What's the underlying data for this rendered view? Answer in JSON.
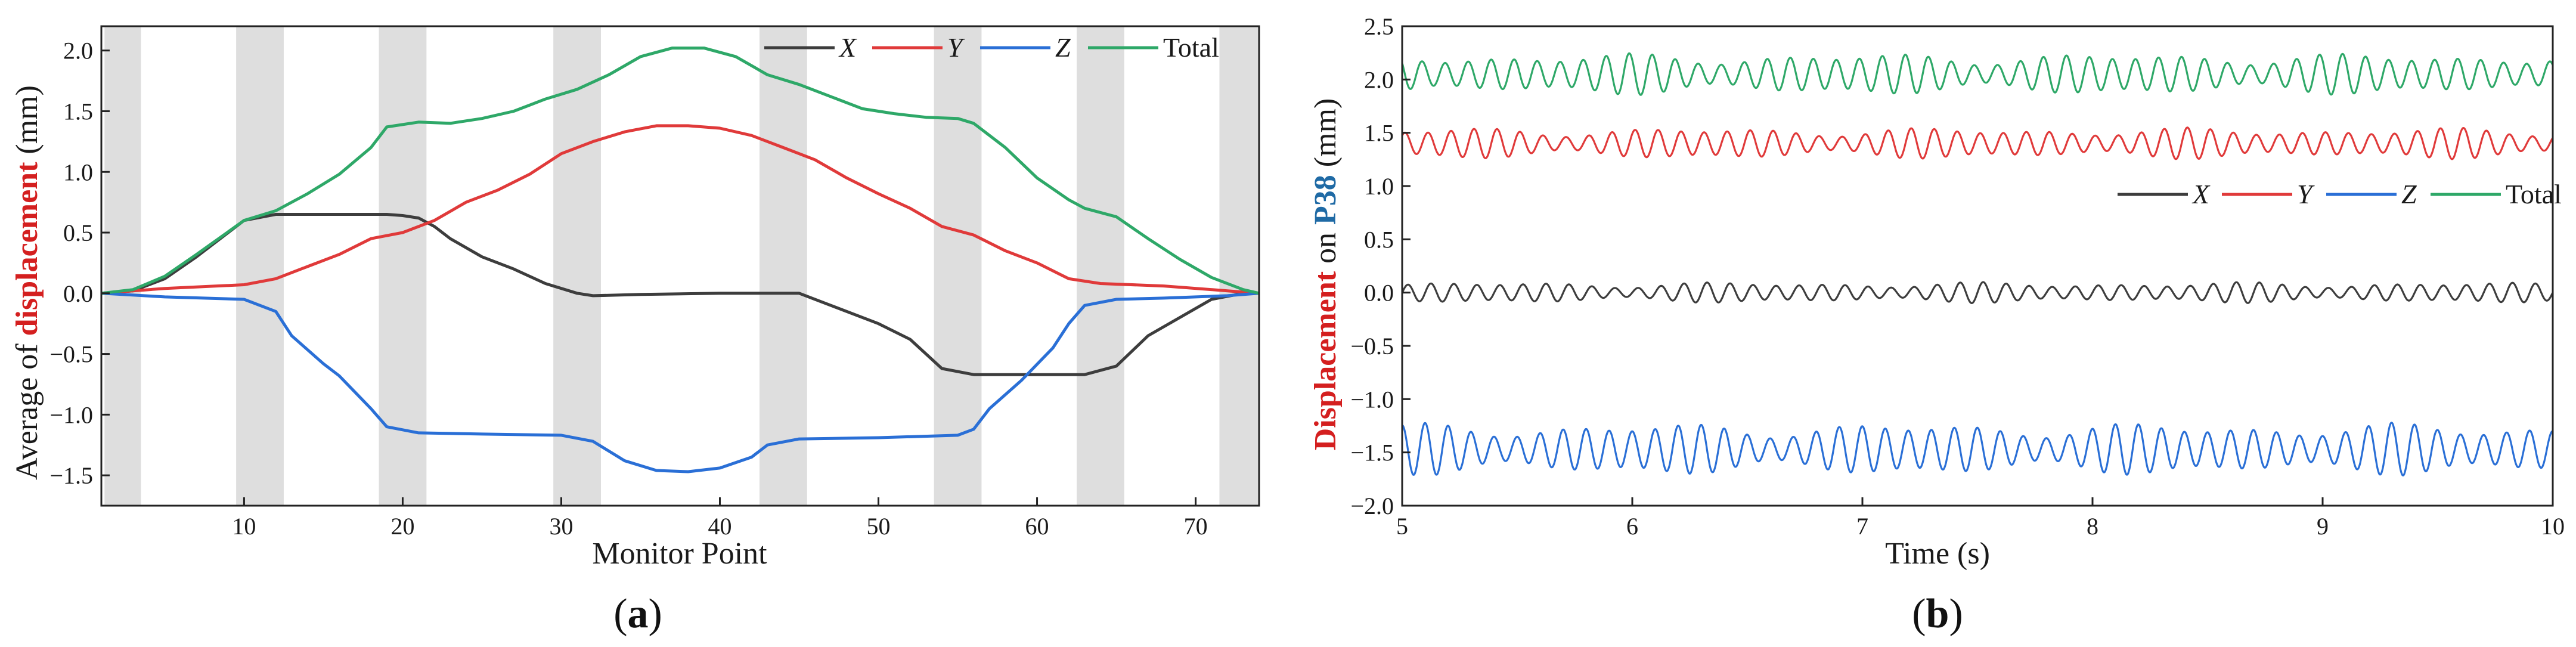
{
  "chart_data": [
    {
      "id": "a",
      "type": "line",
      "panel_label": "a",
      "xlabel": "Monitor Point",
      "ylabel_parts": [
        {
          "text": "Average of ",
          "color": "#1a1a1a",
          "bold": false
        },
        {
          "text": "displacement",
          "color": "#d41f1f",
          "bold": true
        },
        {
          "text": " (mm)",
          "color": "#1a1a1a",
          "bold": false
        }
      ],
      "xlim": [
        1,
        74
      ],
      "ylim": [
        -1.75,
        2.2
      ],
      "xticks": [
        10,
        20,
        30,
        40,
        50,
        60,
        70
      ],
      "yticks": [
        -1.5,
        -1.0,
        -0.5,
        0.0,
        0.5,
        1.0,
        1.5,
        2.0
      ],
      "shaded_bands": [
        [
          1.2,
          3.5
        ],
        [
          9.5,
          12.5
        ],
        [
          18.5,
          21.5
        ],
        [
          29.5,
          32.5
        ],
        [
          42.5,
          45.5
        ],
        [
          53.5,
          56.5
        ],
        [
          62.5,
          65.5
        ],
        [
          71.5,
          74
        ]
      ],
      "legend_position": "top-right",
      "series": [
        {
          "name": "X",
          "color": "#3d3d3d",
          "points": [
            [
              1,
              0
            ],
            [
              3,
              0.02
            ],
            [
              5,
              0.12
            ],
            [
              7,
              0.3
            ],
            [
              10,
              0.6
            ],
            [
              12,
              0.65
            ],
            [
              15,
              0.65
            ],
            [
              19,
              0.65
            ],
            [
              20,
              0.64
            ],
            [
              21,
              0.62
            ],
            [
              22,
              0.55
            ],
            [
              23,
              0.45
            ],
            [
              25,
              0.3
            ],
            [
              27,
              0.2
            ],
            [
              29,
              0.08
            ],
            [
              31,
              0
            ],
            [
              32,
              -0.02
            ],
            [
              35,
              -0.01
            ],
            [
              40,
              0
            ],
            [
              45,
              0
            ],
            [
              47,
              -0.1
            ],
            [
              50,
              -0.25
            ],
            [
              52,
              -0.38
            ],
            [
              54,
              -0.62
            ],
            [
              56,
              -0.67
            ],
            [
              60,
              -0.67
            ],
            [
              63,
              -0.67
            ],
            [
              65,
              -0.6
            ],
            [
              67,
              -0.35
            ],
            [
              69,
              -0.2
            ],
            [
              71,
              -0.05
            ],
            [
              73,
              0
            ],
            [
              74,
              0
            ]
          ]
        },
        {
          "name": "Y",
          "color": "#e03a3a",
          "points": [
            [
              1,
              0
            ],
            [
              5,
              0.04
            ],
            [
              10,
              0.07
            ],
            [
              12,
              0.12
            ],
            [
              14,
              0.22
            ],
            [
              16,
              0.32
            ],
            [
              18,
              0.45
            ],
            [
              20,
              0.5
            ],
            [
              22,
              0.6
            ],
            [
              24,
              0.75
            ],
            [
              26,
              0.85
            ],
            [
              28,
              0.98
            ],
            [
              30,
              1.15
            ],
            [
              32,
              1.25
            ],
            [
              34,
              1.33
            ],
            [
              36,
              1.38
            ],
            [
              38,
              1.38
            ],
            [
              40,
              1.36
            ],
            [
              42,
              1.3
            ],
            [
              44,
              1.2
            ],
            [
              46,
              1.1
            ],
            [
              48,
              0.95
            ],
            [
              50,
              0.82
            ],
            [
              52,
              0.7
            ],
            [
              54,
              0.55
            ],
            [
              56,
              0.48
            ],
            [
              58,
              0.35
            ],
            [
              60,
              0.25
            ],
            [
              62,
              0.12
            ],
            [
              64,
              0.08
            ],
            [
              68,
              0.06
            ],
            [
              72,
              0.02
            ],
            [
              74,
              0
            ]
          ]
        },
        {
          "name": "Z",
          "color": "#2a6fd6",
          "points": [
            [
              1,
              0
            ],
            [
              5,
              -0.03
            ],
            [
              10,
              -0.05
            ],
            [
              12,
              -0.15
            ],
            [
              13,
              -0.35
            ],
            [
              15,
              -0.58
            ],
            [
              16,
              -0.68
            ],
            [
              18,
              -0.95
            ],
            [
              19,
              -1.1
            ],
            [
              21,
              -1.15
            ],
            [
              25,
              -1.16
            ],
            [
              30,
              -1.17
            ],
            [
              32,
              -1.22
            ],
            [
              34,
              -1.38
            ],
            [
              36,
              -1.46
            ],
            [
              38,
              -1.47
            ],
            [
              40,
              -1.44
            ],
            [
              42,
              -1.35
            ],
            [
              43,
              -1.25
            ],
            [
              45,
              -1.2
            ],
            [
              50,
              -1.19
            ],
            [
              55,
              -1.17
            ],
            [
              56,
              -1.12
            ],
            [
              57,
              -0.95
            ],
            [
              59,
              -0.72
            ],
            [
              61,
              -0.45
            ],
            [
              62,
              -0.25
            ],
            [
              63,
              -0.1
            ],
            [
              65,
              -0.05
            ],
            [
              68,
              -0.04
            ],
            [
              72,
              -0.02
            ],
            [
              74,
              0
            ]
          ]
        },
        {
          "name": "Total",
          "color": "#2ea868",
          "points": [
            [
              1,
              0
            ],
            [
              3,
              0.03
            ],
            [
              5,
              0.14
            ],
            [
              7,
              0.32
            ],
            [
              10,
              0.6
            ],
            [
              12,
              0.68
            ],
            [
              14,
              0.82
            ],
            [
              16,
              0.98
            ],
            [
              18,
              1.2
            ],
            [
              19,
              1.37
            ],
            [
              21,
              1.41
            ],
            [
              23,
              1.4
            ],
            [
              25,
              1.44
            ],
            [
              27,
              1.5
            ],
            [
              29,
              1.6
            ],
            [
              31,
              1.68
            ],
            [
              33,
              1.8
            ],
            [
              35,
              1.95
            ],
            [
              37,
              2.02
            ],
            [
              39,
              2.02
            ],
            [
              41,
              1.95
            ],
            [
              43,
              1.8
            ],
            [
              45,
              1.72
            ],
            [
              47,
              1.62
            ],
            [
              49,
              1.52
            ],
            [
              51,
              1.48
            ],
            [
              53,
              1.45
            ],
            [
              55,
              1.44
            ],
            [
              56,
              1.4
            ],
            [
              58,
              1.2
            ],
            [
              60,
              0.95
            ],
            [
              62,
              0.77
            ],
            [
              63,
              0.7
            ],
            [
              65,
              0.63
            ],
            [
              67,
              0.45
            ],
            [
              69,
              0.28
            ],
            [
              71,
              0.13
            ],
            [
              73,
              0.03
            ],
            [
              74,
              0
            ]
          ]
        }
      ]
    },
    {
      "id": "b",
      "type": "line",
      "panel_label": "b",
      "xlabel": "Time (s)",
      "ylabel_parts": [
        {
          "text": "Displacement",
          "color": "#d41f1f",
          "bold": true
        },
        {
          "text": " on ",
          "color": "#1a1a1a",
          "bold": false
        },
        {
          "text": "P38",
          "color": "#1f6aa5",
          "bold": true
        },
        {
          "text": " (mm)",
          "color": "#1a1a1a",
          "bold": false
        }
      ],
      "xlim": [
        5,
        10
      ],
      "ylim": [
        -2.0,
        2.5
      ],
      "xticks": [
        5,
        6,
        7,
        8,
        9,
        10
      ],
      "yticks": [
        -2.0,
        -1.5,
        -1.0,
        -0.5,
        0.0,
        0.5,
        1.0,
        1.5,
        2.0,
        2.5
      ],
      "legend_position": "right",
      "oscillation_note": "approx. 10 oscillations per second about each mean",
      "series": [
        {
          "name": "X",
          "color": "#3d3d3d",
          "mean": 0.0,
          "amplitude": 0.1,
          "frequency_hz": 10.0
        },
        {
          "name": "Y",
          "color": "#e03a3a",
          "mean": 1.4,
          "amplitude": 0.15,
          "frequency_hz": 10.0
        },
        {
          "name": "Z",
          "color": "#2a6fd6",
          "mean": -1.47,
          "amplitude": 0.25,
          "frequency_hz": 10.0
        },
        {
          "name": "Total",
          "color": "#2ea868",
          "mean": 2.05,
          "amplitude": 0.2,
          "frequency_hz": 10.0
        }
      ]
    }
  ]
}
